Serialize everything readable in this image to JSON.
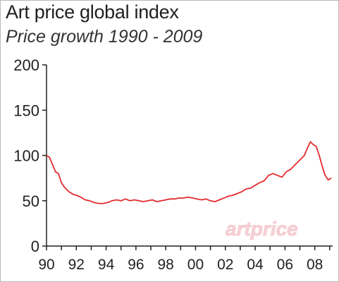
{
  "title": "Art price global index",
  "subtitle": "Price growth 1990 - 2009",
  "watermark": "artprice",
  "colors": {
    "line": "#e32a2e",
    "axis": "#222222",
    "grid": "#dddddd",
    "watermark": "#f6d2d6"
  },
  "chart_data": {
    "type": "line",
    "title": "Art price global index",
    "subtitle": "Price growth 1990 - 2009",
    "xlabel": "",
    "ylabel": "",
    "xlim": [
      1990,
      2009.2
    ],
    "ylim": [
      0,
      200
    ],
    "yticks": [
      0,
      50,
      100,
      150,
      200
    ],
    "xtick_values": [
      1990,
      1992,
      1994,
      1996,
      1998,
      2000,
      2002,
      2004,
      2006,
      2008
    ],
    "xtick_labels": [
      "90",
      "92",
      "94",
      "96",
      "98",
      "00",
      "02",
      "04",
      "06",
      "08"
    ],
    "grid": false,
    "series": [
      {
        "name": "",
        "x": [
          1990.0,
          1990.2,
          1990.4,
          1990.6,
          1990.8,
          1991.0,
          1991.2,
          1991.5,
          1991.8,
          1992.0,
          1992.3,
          1992.6,
          1992.9,
          1993.2,
          1993.5,
          1993.8,
          1994.1,
          1994.4,
          1994.7,
          1995.0,
          1995.3,
          1995.6,
          1995.9,
          1996.2,
          1996.5,
          1996.8,
          1997.1,
          1997.4,
          1997.7,
          1998.0,
          1998.3,
          1998.6,
          1998.9,
          1999.2,
          1999.5,
          1999.8,
          2000.1,
          2000.4,
          2000.7,
          2001.0,
          2001.3,
          2001.6,
          2001.9,
          2002.2,
          2002.5,
          2002.8,
          2003.1,
          2003.4,
          2003.7,
          2004.0,
          2004.3,
          2004.6,
          2004.9,
          2005.2,
          2005.5,
          2005.8,
          2006.1,
          2006.4,
          2006.7,
          2007.0,
          2007.3,
          2007.5,
          2007.7,
          2007.9,
          2008.1,
          2008.3,
          2008.5,
          2008.7,
          2008.9,
          2009.1
        ],
        "values": [
          100,
          98,
          90,
          82,
          80,
          70,
          65,
          60,
          57,
          56,
          54,
          51,
          50,
          48,
          47,
          47,
          48,
          50,
          51,
          50,
          52,
          50,
          51,
          50,
          49,
          50,
          51,
          49,
          50,
          51,
          52,
          52,
          53,
          53,
          54,
          53,
          52,
          51,
          52,
          50,
          49,
          51,
          53,
          55,
          56,
          58,
          60,
          63,
          64,
          67,
          70,
          72,
          78,
          80,
          78,
          76,
          82,
          85,
          90,
          95,
          100,
          108,
          115,
          112,
          110,
          100,
          88,
          78,
          73,
          75
        ]
      }
    ]
  }
}
